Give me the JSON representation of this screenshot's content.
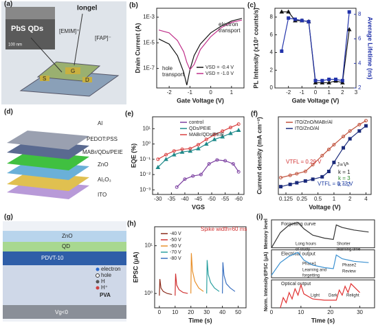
{
  "diagrams": {
    "a": {
      "label": "(a)",
      "sem": "PbS QDs",
      "scale": "100 nm",
      "title": "Iongel",
      "cation": "[EMIM]⁺",
      "anion": "[FAP]⁻",
      "s": "S",
      "g": "G",
      "d": "D"
    },
    "d": {
      "label": "(d)",
      "layers": [
        "Al",
        "PEDOT:PSS",
        "MABr/QDs/PEIE",
        "ZnO",
        "Al₂O₃",
        "ITO"
      ]
    },
    "g": {
      "label": "(g)",
      "layers": [
        "ZnO",
        "QD",
        "PDVT-10",
        "PVA",
        "Vg<0"
      ],
      "legend": [
        "electron",
        "hole",
        "H",
        "H⁺"
      ]
    }
  },
  "chart_data": [
    {
      "type": "line",
      "label": "(b)",
      "xlabel": "Gate Voltage (V)",
      "ylabel": "Drain Current (A)",
      "xlim": [
        -2.6,
        1.6
      ],
      "xticks": [
        -2,
        -1,
        0,
        1
      ],
      "ylog": true,
      "ylim": [
        3e-09,
        0.005
      ],
      "yticks": [
        {
          "value": 0.001,
          "label": "1E-3"
        },
        {
          "value": 1e-05,
          "label": "1E-5"
        },
        {
          "value": 1e-07,
          "label": "1E-7"
        }
      ],
      "annotations": [
        "electron",
        "transport",
        "hole",
        "transport"
      ],
      "series": [
        {
          "name": "VSD = -0.4 V",
          "color": "#111111",
          "x": [
            -2.5,
            -2,
            -1.6,
            -1.3,
            -1.15,
            -1.0,
            -0.8,
            -0.5,
            0,
            0.5,
            1,
            1.5
          ],
          "values": [
            2e-05,
            8e-06,
            1e-06,
            5e-08,
            5e-09,
            8e-08,
            1e-06,
            8e-06,
            6e-05,
            0.0002,
            0.0005,
            0.0008
          ]
        },
        {
          "name": "VSD = -1.0 V",
          "color": "#c0308a",
          "x": [
            -2.5,
            -2,
            -1.6,
            -1.3,
            -1.15,
            -1.0,
            -0.8,
            -0.5,
            0,
            0.5,
            1,
            1.5
          ],
          "values": [
            0.0001,
            6e-05,
            1.5e-05,
            2e-06,
            3e-07,
            8e-08,
            2e-07,
            3e-06,
            3e-05,
            0.00015,
            0.0004,
            0.0006
          ]
        }
      ]
    },
    {
      "type": "dual-line",
      "label": "(c)",
      "xlabel": "Gate Voltage (V)",
      "ylabel": "PL Intensity (x10⁷ counts/s)",
      "y2label": "Average Lifetime (ns)",
      "xlim": [
        -3,
        3
      ],
      "xticks": [
        -2,
        -1,
        0,
        1,
        2,
        3
      ],
      "ylim": [
        0,
        9
      ],
      "yticks": [
        0,
        2,
        4,
        6,
        8
      ],
      "y2lim": [
        2,
        8.5
      ],
      "y2ticks": [
        2,
        4,
        6,
        8
      ],
      "series": [
        {
          "color": "#111111",
          "marker": "triangle",
          "x": [
            -2.5,
            -2,
            -1.5,
            -1,
            -0.5,
            0,
            0.5,
            1,
            1.5,
            2,
            2.5
          ],
          "values": [
            8.6,
            8.6,
            7.6,
            7.6,
            7.5,
            0.6,
            0.6,
            0.6,
            0.8,
            0.6,
            6.6
          ]
        },
        {
          "color": "#2233aa",
          "marker": "square",
          "axis": "y2",
          "x": [
            -2.5,
            -2,
            -1.5,
            -1,
            -0.5,
            0,
            0.5,
            1,
            1.5,
            2,
            2.5
          ],
          "values": [
            5.0,
            7.7,
            7.6,
            7.5,
            7.4,
            2.6,
            2.6,
            2.7,
            2.7,
            2.6,
            8.2
          ]
        }
      ]
    },
    {
      "type": "line",
      "label": "(e)",
      "xlabel": "VGS",
      "ylabel": "EQE (%)",
      "xlim": [
        -28,
        -62
      ],
      "xticks": [
        -30,
        -35,
        -40,
        -45,
        -50,
        -55,
        -60
      ],
      "ylog": true,
      "ylim": [
        0.0005,
        60
      ],
      "yticks": [
        {
          "value": 0.001,
          "label": "10⁻³"
        },
        {
          "value": 0.01,
          "label": "10⁻²"
        },
        {
          "value": 0.1,
          "label": "10⁻¹"
        },
        {
          "value": 1,
          "label": "10⁰"
        },
        {
          "value": 10,
          "label": "10¹"
        }
      ],
      "series": [
        {
          "name": "control",
          "color": "#7b3fa0",
          "marker": "circle",
          "x": [
            -37,
            -40,
            -43,
            -46,
            -49,
            -52,
            -55,
            -58,
            -60
          ],
          "values": [
            0.0015,
            0.005,
            0.008,
            0.01,
            0.05,
            0.09,
            0.08,
            0.05,
            0.015
          ]
        },
        {
          "name": "QDs/PEIE",
          "color": "#1f8a8a",
          "marker": "triangle",
          "x": [
            -30,
            -33,
            -36,
            -39,
            -42,
            -45,
            -48,
            -51,
            -54,
            -57,
            -60
          ],
          "values": [
            0.03,
            0.1,
            0.2,
            0.3,
            0.35,
            0.5,
            1,
            2,
            3,
            5,
            8
          ]
        },
        {
          "name": "MABr/QDs/PEIE",
          "color": "#d94040",
          "marker": "circle",
          "x": [
            -30,
            -33,
            -36,
            -39,
            -42,
            -45,
            -48,
            -51,
            -54,
            -57,
            -60
          ],
          "values": [
            0.1,
            0.2,
            0.35,
            0.45,
            0.5,
            0.9,
            2,
            4,
            7,
            12,
            20
          ]
        }
      ]
    },
    {
      "type": "line",
      "label": "(f)",
      "xlabel": "Voltage (V)",
      "ylabel": "Current density (mA cm⁻²)",
      "xlog": true,
      "xlim": [
        0.09,
        5
      ],
      "xticks": [
        0.125,
        0.25,
        0.5,
        1,
        2,
        4
      ],
      "ylog": true,
      "ylim": [
        0.0001,
        100
      ],
      "annotations": [
        "VTFL = 0.29 V",
        "VTFL = 0.73 V",
        "J∝Vᵏ",
        "k = 1",
        "k = 3",
        "k = 2"
      ],
      "series": [
        {
          "name": "ITO/ZnO/MABr/Al",
          "color": "#c0503a",
          "marker": "circle",
          "x": [
            0.1,
            0.15,
            0.2,
            0.29,
            0.4,
            0.6,
            0.8,
            1,
            1.5,
            2,
            3,
            4
          ],
          "values": [
            0.002,
            0.003,
            0.004,
            0.006,
            0.02,
            0.1,
            0.3,
            0.7,
            3,
            8,
            25,
            50
          ]
        },
        {
          "name": "ITO/ZnO/Al",
          "color": "#1a2a7a",
          "marker": "square",
          "x": [
            0.1,
            0.15,
            0.2,
            0.29,
            0.4,
            0.6,
            0.8,
            1,
            1.5,
            2,
            3,
            4
          ],
          "values": [
            0.0004,
            0.0006,
            0.0008,
            0.0011,
            0.0015,
            0.0023,
            0.006,
            0.03,
            0.4,
            2,
            8,
            20
          ]
        }
      ]
    },
    {
      "type": "pulse",
      "label": "(h)",
      "xlabel": "Time (s)",
      "ylabel": "EPSC (μA)",
      "xlim": [
        -3,
        55
      ],
      "xticks": [
        0,
        10,
        20,
        30,
        40,
        50
      ],
      "ylog": true,
      "ylim": [
        0.5,
        25
      ],
      "yticks": [
        {
          "value": 10,
          "label": "10¹"
        },
        {
          "value": 1,
          "label": "10⁰"
        }
      ],
      "annotations": [
        "Spike width=60 ms"
      ],
      "series": [
        {
          "name": "-40 V",
          "color": "#8b2a1a",
          "x": [
            0,
            0.3,
            1,
            2.5,
            5,
            8
          ],
          "values": [
            0.9,
            2.0,
            1.3,
            1.1,
            1.0,
            0.95
          ]
        },
        {
          "name": "-50 V",
          "color": "#d03030",
          "x": [
            10,
            10.3,
            11,
            12.5,
            15,
            18
          ],
          "values": [
            0.9,
            2.6,
            1.5,
            1.2,
            1.05,
            1.0
          ]
        },
        {
          "name": "-60 V",
          "color": "#e8902a",
          "x": [
            20,
            20.3,
            21,
            22.5,
            25,
            28
          ],
          "values": [
            1.0,
            7.0,
            3.0,
            1.8,
            1.3,
            1.1
          ]
        },
        {
          "name": "-70 V",
          "color": "#2aa0a0",
          "x": [
            30,
            30.3,
            31,
            32.5,
            35,
            38
          ],
          "values": [
            1.0,
            5.0,
            2.5,
            1.7,
            1.3,
            1.1
          ]
        },
        {
          "name": "-80 V",
          "color": "#3a70c0",
          "x": [
            40,
            40.3,
            41,
            42.5,
            45,
            48
          ],
          "values": [
            1.0,
            4.5,
            2.4,
            1.6,
            1.3,
            1.1
          ]
        }
      ]
    },
    {
      "type": "stacked",
      "label": "(i)",
      "xlabel": "Time (s)",
      "xlim": [
        0,
        35
      ],
      "xticks": [
        0,
        10,
        20,
        30
      ],
      "panels": [
        {
          "ylabel": "Memory level",
          "title": "Forgetting curve",
          "ylim": [
            0,
            1.1
          ],
          "annotations": [
            "Long hours",
            "of study",
            "Shorter",
            "learning time"
          ],
          "series": [
            {
              "color": "#333333",
              "x": [
                0,
                3,
                6,
                9,
                11,
                14,
                18,
                21,
                22,
                24,
                28,
                33
              ],
              "values": [
                0,
                0.6,
                0.9,
                1,
                0.75,
                0.5,
                0.38,
                0.33,
                0.9,
                0.8,
                0.7,
                0.62
              ]
            }
          ]
        },
        {
          "ylabel": "EPSC (μA)",
          "title": "Electrical output",
          "ylim": [
            0,
            1.1
          ],
          "annotations": [
            "Phase1",
            "Learning and",
            "forgetting",
            "Phase2",
            "Review"
          ],
          "series": [
            {
              "color": "#3a90d0",
              "x": [
                0,
                3,
                6,
                9,
                11,
                14,
                18,
                21,
                22,
                24,
                28,
                33
              ],
              "values": [
                0.1,
                0.6,
                0.85,
                1,
                0.7,
                0.5,
                0.4,
                0.36,
                0.9,
                0.75,
                0.65,
                0.6
              ]
            }
          ]
        },
        {
          "ylabel": "Norm. Intensity",
          "title": "Optical output",
          "ylim": [
            0,
            1.1
          ],
          "annotations": [
            "Light",
            "Dark",
            "Relight"
          ],
          "series": [
            {
              "color": "#e03030",
              "x": [
                3,
                4,
                5,
                6,
                7,
                8,
                9,
                10,
                11,
                14,
                18,
                22,
                23,
                24,
                25,
                26,
                27,
                30
              ],
              "values": [
                0,
                0.4,
                0.2,
                0.6,
                0.35,
                0.75,
                0.5,
                0.9,
                0.55,
                0.35,
                0.3,
                0.3,
                0.7,
                0.5,
                0.85,
                0.6,
                0.95,
                0.6
              ]
            }
          ]
        }
      ]
    }
  ]
}
